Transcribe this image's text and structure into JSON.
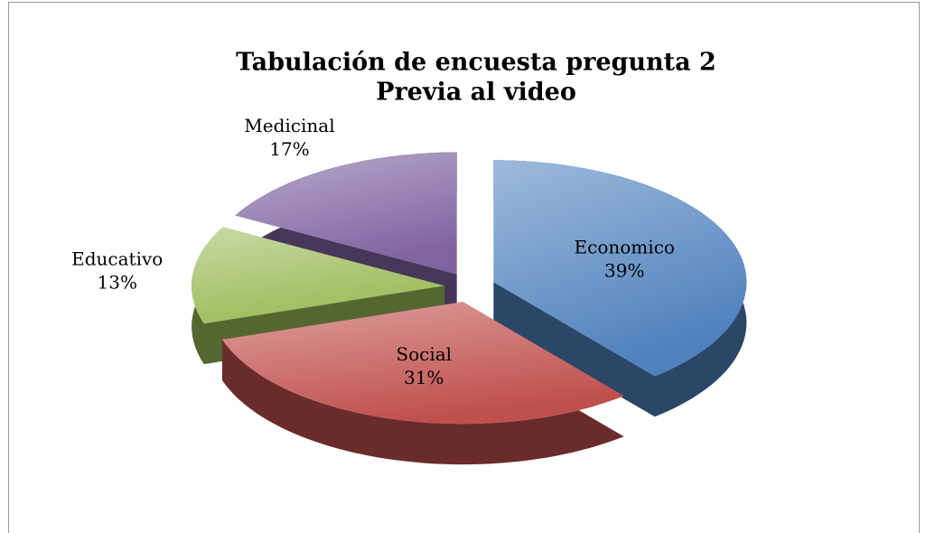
{
  "chart_data": {
    "type": "pie",
    "title": "Tabulación de encuesta pregunta 2",
    "subtitle": "Previa al video",
    "categories": [
      "Economico",
      "Social",
      "Educativo",
      "Medicinal"
    ],
    "values": [
      39,
      31,
      13,
      17
    ],
    "value_labels": [
      "39%",
      "31%",
      "13%",
      "17%"
    ],
    "colors": [
      "#4f81bd",
      "#c0504d",
      "#9bbb59",
      "#8064a2"
    ]
  }
}
